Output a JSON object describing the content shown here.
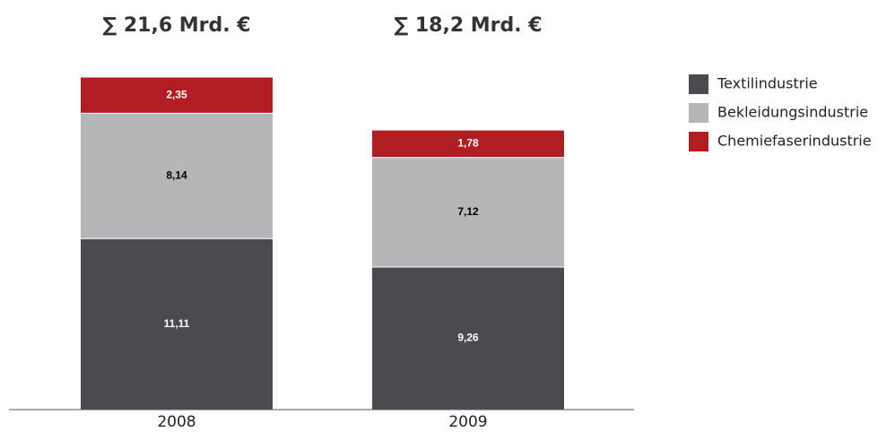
{
  "chart_data": {
    "type": "stacked_bar",
    "categories": [
      "2008",
      "2009"
    ],
    "annotations": [
      "∑ 21,6 Mrd. €",
      "∑ 18,2 Mrd. €"
    ],
    "series": [
      {
        "name": "Textilindustrie",
        "color": "#4a4b4f",
        "values": [
          11.11,
          9.26
        ],
        "value_labels": [
          "11,11",
          "9,26"
        ]
      },
      {
        "name": "Bekleidungsindustrie",
        "color": "#b5b6b8",
        "values": [
          8.14,
          7.12
        ],
        "value_labels": [
          "8,14",
          "7,12"
        ]
      },
      {
        "name": "Chemiefaserindustrie",
        "color": "#b01e23",
        "values": [
          2.35,
          1.78
        ],
        "value_labels": [
          "2,35",
          "1,78"
        ]
      }
    ]
  }
}
